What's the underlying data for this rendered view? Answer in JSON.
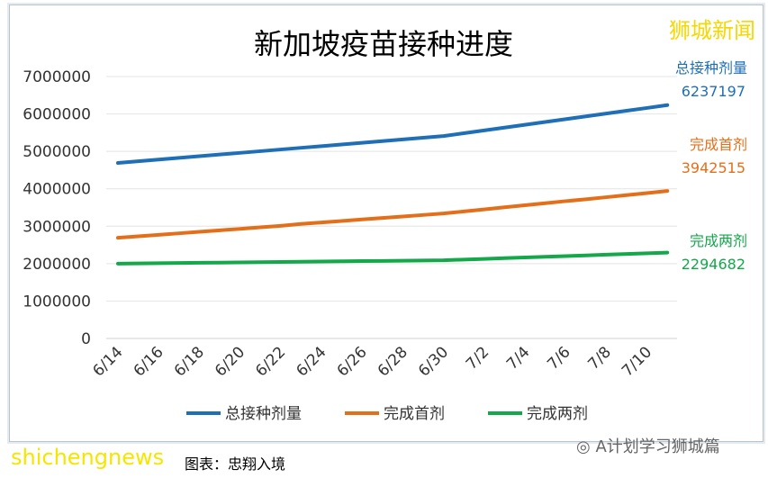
{
  "chart_data": {
    "type": "line",
    "title": "新加坡疫苗接种进度",
    "categories": [
      "6/14",
      "6/15",
      "6/16",
      "6/17",
      "6/18",
      "6/19",
      "6/20",
      "6/21",
      "6/22",
      "6/23",
      "6/24",
      "6/25",
      "6/26",
      "6/27",
      "6/28",
      "6/29",
      "6/30",
      "7/1",
      "7/2",
      "7/3",
      "7/4",
      "7/5",
      "7/6",
      "7/7",
      "7/8",
      "7/9",
      "7/10",
      "7/11"
    ],
    "tick_labels": [
      "6/14",
      "6/16",
      "6/18",
      "6/20",
      "6/22",
      "6/24",
      "6/26",
      "6/28",
      "6/30",
      "7/2",
      "7/4",
      "7/6",
      "7/8",
      "7/10"
    ],
    "ylim": [
      0,
      7000000
    ],
    "yticks": [
      "0",
      "1000000",
      "2000000",
      "3000000",
      "4000000",
      "5000000",
      "6000000",
      "7000000"
    ],
    "grid": true,
    "legend": "bottom",
    "series": [
      {
        "name": "总接种剂量",
        "color": "#1f6fb7",
        "end_label": "6237197",
        "values": [
          4690000,
          4735000,
          4780000,
          4825000,
          4870000,
          4915000,
          4960000,
          5005000,
          5050000,
          5095000,
          5140000,
          5185000,
          5230000,
          5275000,
          5320000,
          5365000,
          5410000,
          5485000,
          5560000,
          5635000,
          5710000,
          5785000,
          5860000,
          5935000,
          6010000,
          6085000,
          6160000,
          6237197
        ]
      },
      {
        "name": "完成首剂",
        "color": "#e46f1a",
        "end_label": "3942515",
        "values": [
          2690000,
          2730000,
          2770000,
          2810000,
          2850000,
          2890000,
          2930000,
          2970000,
          3010000,
          3060000,
          3100000,
          3140000,
          3180000,
          3220000,
          3260000,
          3300000,
          3340000,
          3395000,
          3450000,
          3505000,
          3560000,
          3615000,
          3670000,
          3720000,
          3775000,
          3830000,
          3885000,
          3942515
        ]
      },
      {
        "name": "完成两剂",
        "color": "#14a84b",
        "end_label": "2294682",
        "values": [
          2000000,
          2006000,
          2011000,
          2017000,
          2023000,
          2028000,
          2034000,
          2040000,
          2045000,
          2051000,
          2056000,
          2062000,
          2068000,
          2073000,
          2079000,
          2084000,
          2090000,
          2109000,
          2127000,
          2146000,
          2164000,
          2183000,
          2202000,
          2220000,
          2239000,
          2257000,
          2276000,
          2294682
        ]
      }
    ]
  },
  "watermarks": {
    "top_right": "狮城新闻",
    "bottom_left": "shichengnews",
    "bottom_right": "A计划学习狮城篇"
  },
  "caption": "图表：忠翔入境"
}
